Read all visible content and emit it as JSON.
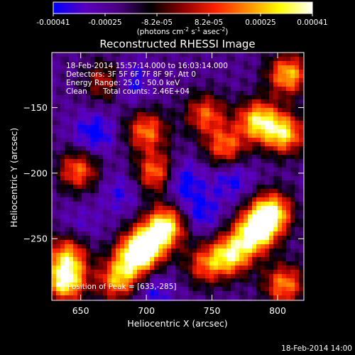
{
  "chart_data": {
    "type": "heatmap",
    "title": "Reconstructed RHESSI Image",
    "xlabel": "Heliocentric X (arcsec)",
    "ylabel": "Heliocentric Y (arcsec)",
    "xlim": [
      628,
      820
    ],
    "ylim": [
      -297,
      -108
    ],
    "x_ticks": [
      650,
      700,
      750,
      800
    ],
    "y_ticks": [
      -150,
      -200,
      -250
    ],
    "colorbar": {
      "label_main": "(photons cm",
      "label_sup1": "-2",
      "label_mid": " s",
      "label_sup2": "-1",
      "label_end": " asec",
      "label_sup3": "-2",
      "label_close": ")",
      "range": [
        -0.00041,
        0.00041
      ],
      "tick_labels": [
        "-0.00041",
        "-0.00025",
        "-8.2e-05",
        "8.2e-05",
        "0.00025",
        "0.00041"
      ],
      "colormap": [
        "#0000ff",
        "#5a00c0",
        "#4b0082",
        "#000000",
        "#8b0000",
        "#ff2000",
        "#ff8c00",
        "#ffff00",
        "#ffffff"
      ]
    },
    "annotations": {
      "line1": "18-Feb-2014 15:57:14.000 to 16:03:14.000",
      "line2": "Detectors: 3F 5F 6F 7F 8F 9F, Att 0",
      "line3": "Energy Range: 25.0 - 50.0 keV",
      "line4a": "Clean",
      "line4b": "Total counts: 2.46E+04",
      "peak_label": "Position of Peak = [633,-285]"
    },
    "peak": {
      "x": 633,
      "y": -285
    },
    "hot_spots": [
      {
        "x": 783,
        "y": -245,
        "value": 0.00041
      },
      {
        "x": 795,
        "y": -230,
        "value": 0.00037
      },
      {
        "x": 765,
        "y": -262,
        "value": 0.0003
      },
      {
        "x": 715,
        "y": -240,
        "value": 0.00034
      },
      {
        "x": 700,
        "y": -255,
        "value": 0.00033
      },
      {
        "x": 690,
        "y": -265,
        "value": 0.00022
      },
      {
        "x": 678,
        "y": -282,
        "value": 0.0002
      },
      {
        "x": 638,
        "y": -282,
        "value": 0.00038
      },
      {
        "x": 640,
        "y": -262,
        "value": 0.00018
      },
      {
        "x": 648,
        "y": -198,
        "value": 0.00016
      },
      {
        "x": 708,
        "y": -200,
        "value": 0.00022
      },
      {
        "x": 700,
        "y": -168,
        "value": 0.00018
      },
      {
        "x": 785,
        "y": -160,
        "value": 0.0003
      },
      {
        "x": 805,
        "y": -170,
        "value": 0.00028
      },
      {
        "x": 808,
        "y": -125,
        "value": 0.00026
      },
      {
        "x": 760,
        "y": -180,
        "value": 0.00016
      },
      {
        "x": 745,
        "y": -155,
        "value": 0.00014
      },
      {
        "x": 805,
        "y": -285,
        "value": 0.0002
      },
      {
        "x": 745,
        "y": -270,
        "value": 0.00012
      },
      {
        "x": 670,
        "y": -130,
        "value": 0.0001
      }
    ],
    "cold_spots": [
      {
        "x": 685,
        "y": -130,
        "value": -0.0003
      },
      {
        "x": 660,
        "y": -170,
        "value": -0.00028
      },
      {
        "x": 725,
        "y": -205,
        "value": -0.00032
      },
      {
        "x": 740,
        "y": -230,
        "value": -0.00026
      },
      {
        "x": 705,
        "y": -290,
        "value": -0.00022
      },
      {
        "x": 765,
        "y": -205,
        "value": -0.00024
      },
      {
        "x": 680,
        "y": -215,
        "value": -0.0002
      },
      {
        "x": 650,
        "y": -240,
        "value": -0.00016
      }
    ]
  },
  "footer_timestamp": "18-Feb-2014 14:00"
}
